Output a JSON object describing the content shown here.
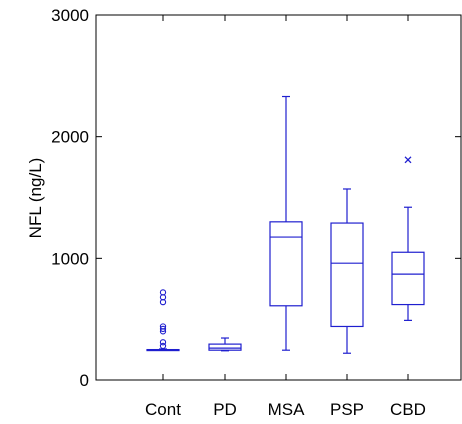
{
  "chart_data": {
    "type": "box",
    "ylabel": "NFL (ng/L)",
    "ylim": [
      0,
      3000
    ],
    "yticks": [
      0,
      1000,
      2000,
      3000
    ],
    "ytick_labels": [
      "0",
      "1000",
      "2000",
      "3000"
    ],
    "categories": [
      "Cont",
      "PD",
      "MSA",
      "PSP",
      "CBD"
    ],
    "color": "#1f1fcf",
    "grid": false,
    "boxes": [
      {
        "category": "Cont",
        "whisker_low": 245,
        "q1": 245,
        "median": 245,
        "q3": 250,
        "whisker_high": 255,
        "outliers": [
          {
            "value": 720,
            "marker": "o"
          },
          {
            "value": 680,
            "marker": "o"
          },
          {
            "value": 640,
            "marker": "o"
          },
          {
            "value": 440,
            "marker": "o"
          },
          {
            "value": 420,
            "marker": "o"
          },
          {
            "value": 400,
            "marker": "o"
          },
          {
            "value": 310,
            "marker": "o"
          },
          {
            "value": 280,
            "marker": "o"
          }
        ]
      },
      {
        "category": "PD",
        "whisker_low": 240,
        "q1": 245,
        "median": 262,
        "q3": 295,
        "whisker_high": 345,
        "outliers": []
      },
      {
        "category": "MSA",
        "whisker_low": 245,
        "q1": 610,
        "median": 1175,
        "q3": 1300,
        "whisker_high": 2330,
        "outliers": []
      },
      {
        "category": "PSP",
        "whisker_low": 220,
        "q1": 440,
        "median": 960,
        "q3": 1290,
        "whisker_high": 1570,
        "outliers": []
      },
      {
        "category": "CBD",
        "whisker_low": 490,
        "q1": 620,
        "median": 870,
        "q3": 1050,
        "whisker_high": 1420,
        "outliers": [
          {
            "value": 1810,
            "marker": "x"
          }
        ]
      }
    ]
  }
}
